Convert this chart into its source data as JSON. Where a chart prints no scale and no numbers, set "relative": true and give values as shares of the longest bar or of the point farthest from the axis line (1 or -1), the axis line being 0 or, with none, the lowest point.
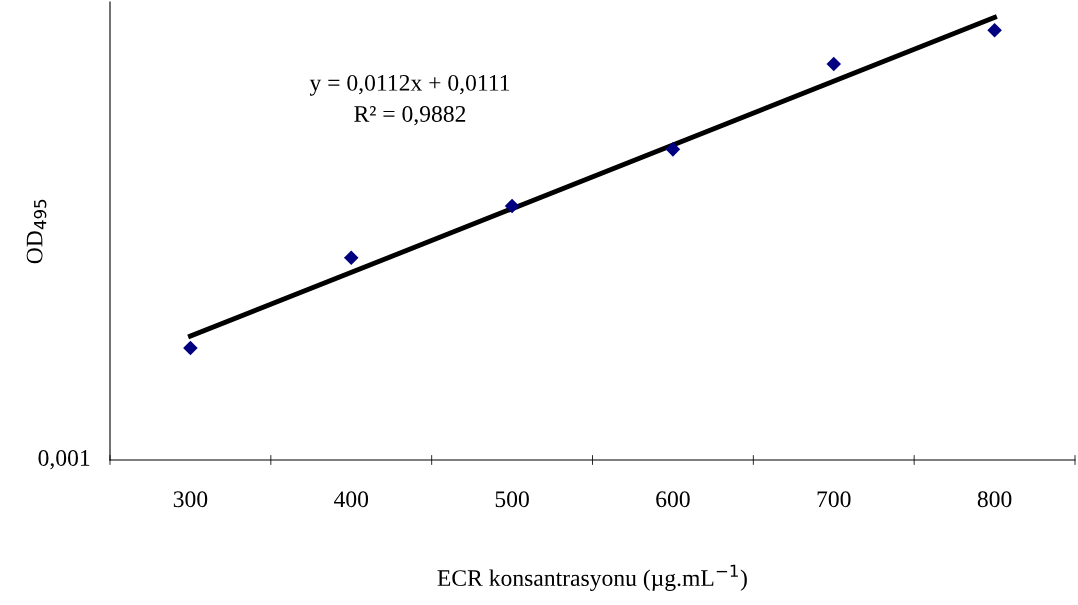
{
  "chart_data": {
    "type": "scatter",
    "relative": true,
    "xlabel": "ECR konsantrasyonu (µg.mL$^{−1}$)",
    "ylabel": "OD$_{495}$",
    "categories": [
      "300",
      "400",
      "500",
      "600",
      "700",
      "800"
    ],
    "series": [
      {
        "color": "#000080",
        "marker": "diamond",
        "values": [
          0.253,
          0.457,
          0.574,
          0.702,
          0.895,
          0.971
        ]
      },
      {
        "type": "line",
        "color": "#000000",
        "marker": "none",
        "line_style": "solid",
        "x": [
          "300",
          "800"
        ],
        "values": [
          0.28,
          1.0
        ]
      }
    ],
    "annotations": [
      "y = 0,0112x + 0,0111",
      "R² = 0,9882",
      "0,001"
    ],
    "grid": false,
    "legend": false
  }
}
